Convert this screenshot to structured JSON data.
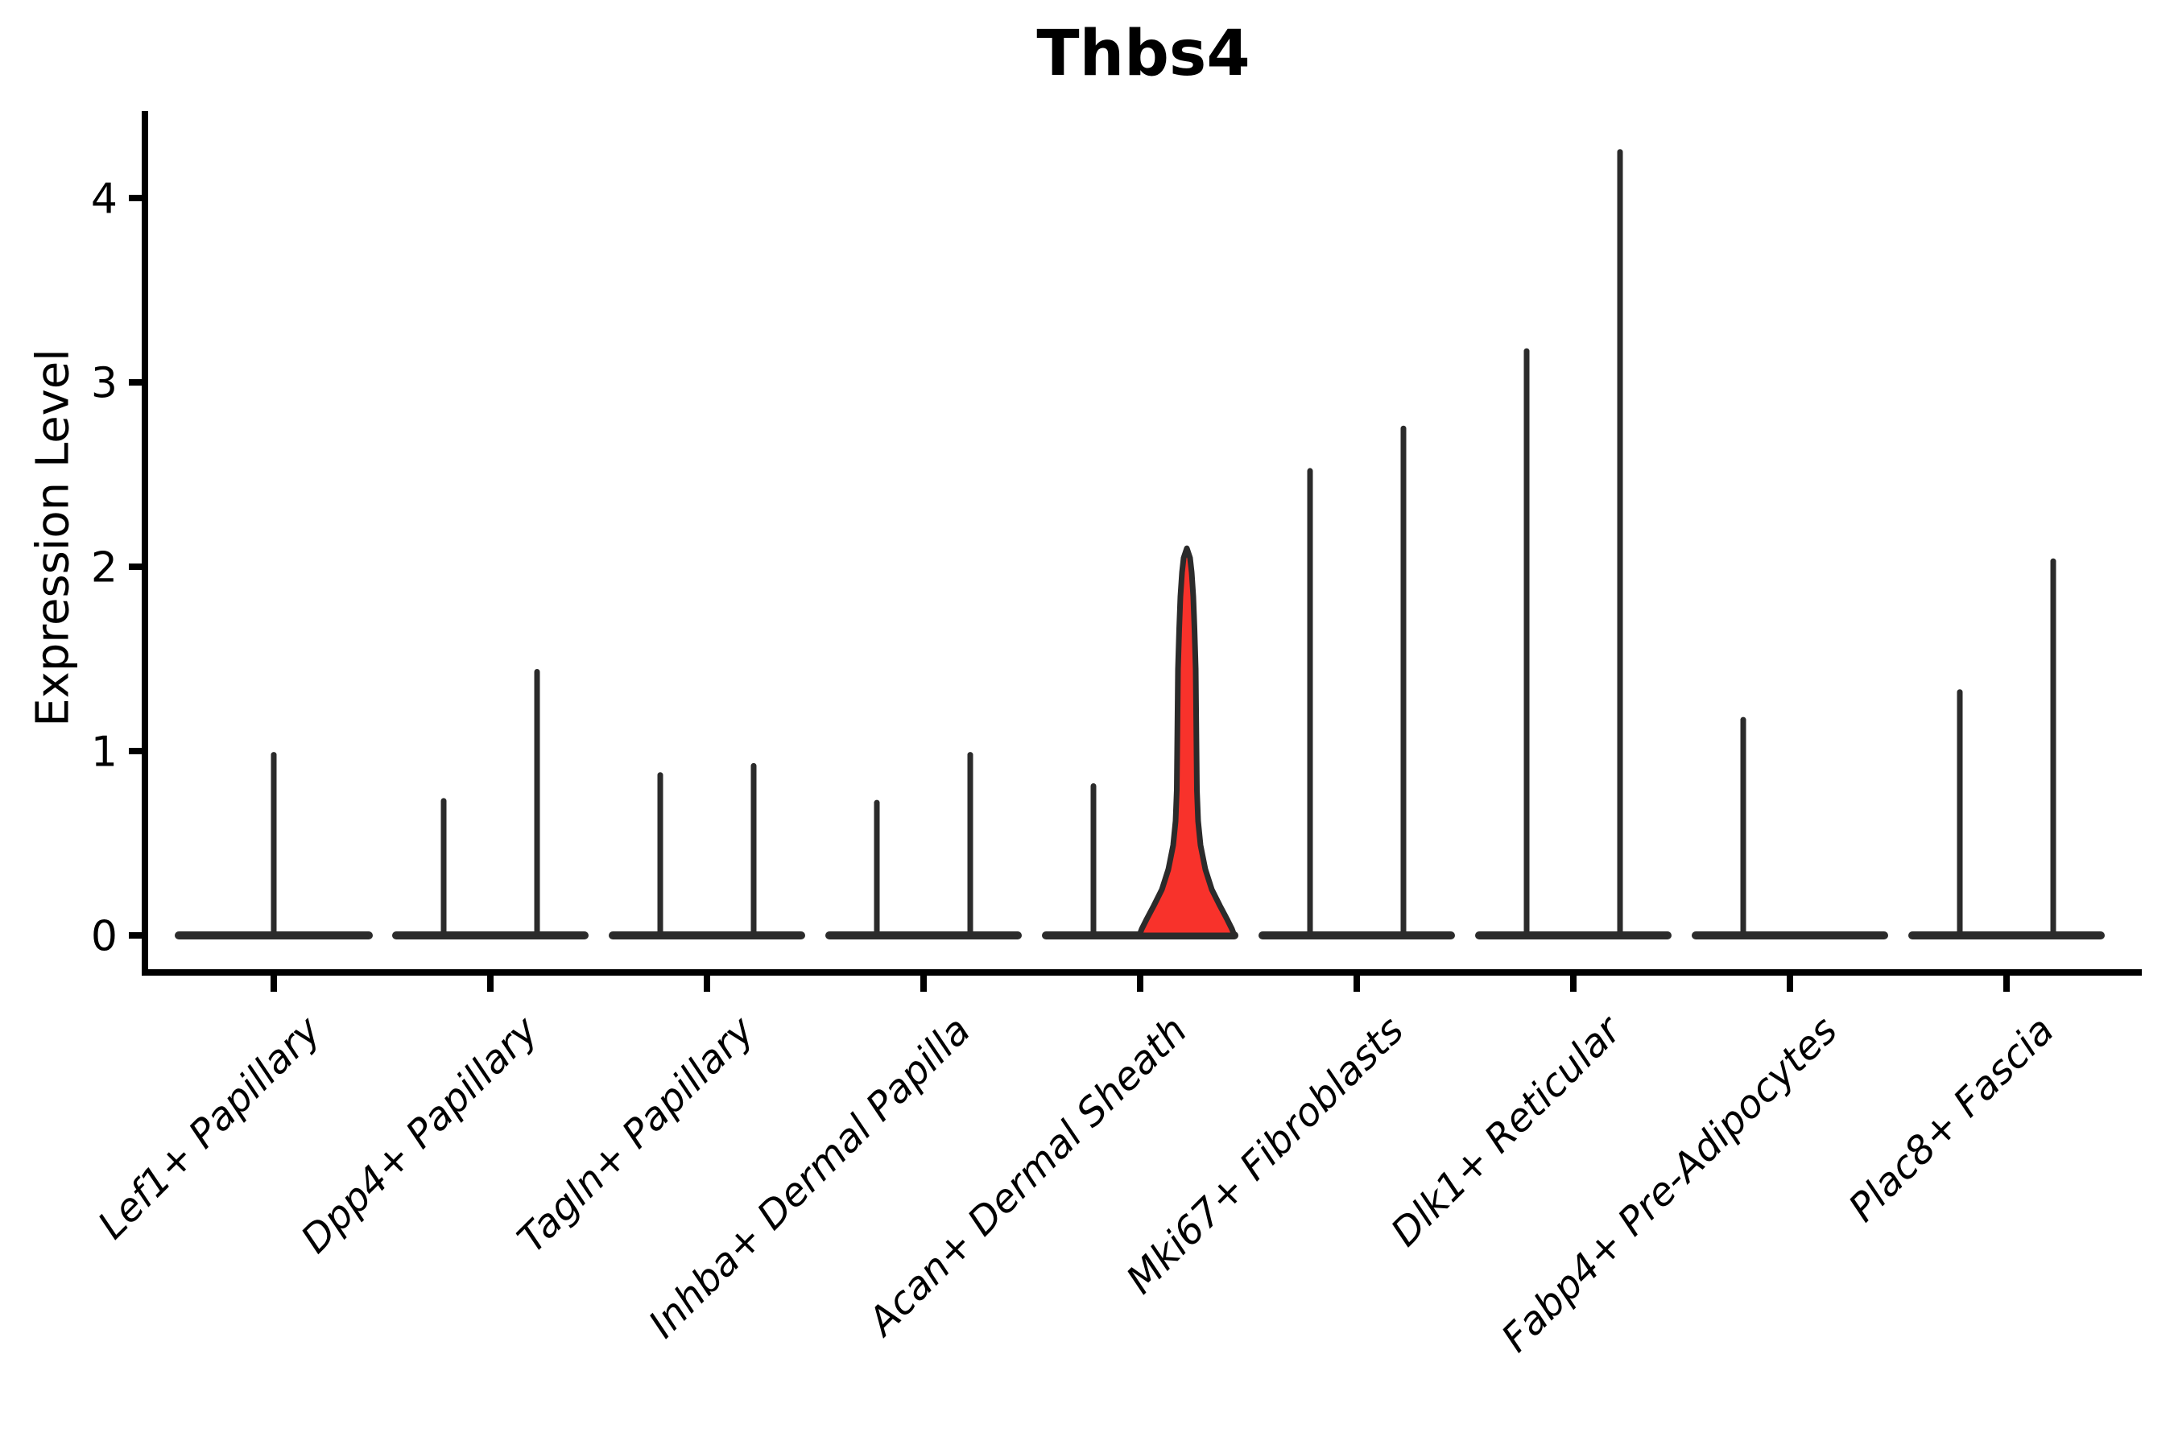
{
  "title": "Thbs4",
  "y_axis": {
    "label": "Expression Level",
    "ticks": [
      "0",
      "1",
      "2",
      "3",
      "4"
    ]
  },
  "x_axis": {
    "categories": [
      "Lef1+ Papillary",
      "Dpp4+ Papillary",
      "Tagln+ Papillary",
      "Inhba+ Dermal Papilla",
      "Acan+ Dermal Sheath",
      "Mki67+ Fibroblasts",
      "Dlk1+ Reticular",
      "Fabp4+ Pre-Adipocytes",
      "Plac8+ Fascia"
    ]
  },
  "colors": {
    "violin_stroke": "#2b2b2b",
    "axis": "#000000",
    "highlight_fill": "#f8322b"
  },
  "chart_data": {
    "type": "violin",
    "title": "Thbs4",
    "xlabel": "",
    "ylabel": "Expression Level",
    "ylim": [
      0,
      4.45
    ],
    "yticks": [
      0,
      1,
      2,
      3,
      4
    ],
    "grid": false,
    "legend_position": "none",
    "categories": [
      "Lef1+ Papillary",
      "Dpp4+ Papillary",
      "Tagln+ Papillary",
      "Inhba+ Dermal Papilla",
      "Acan+ Dermal Sheath",
      "Mki67+ Fibroblasts",
      "Dlk1+ Reticular",
      "Fabp4+ Pre-Adipocytes",
      "Plac8+ Fascia"
    ],
    "series": [
      {
        "name": "left-violin",
        "max_expression": [
          0.98,
          0.73,
          0.87,
          0.72,
          0.81,
          2.52,
          3.17,
          1.17,
          1.32
        ]
      },
      {
        "name": "right-violin",
        "max_expression": [
          null,
          1.43,
          0.92,
          0.98,
          2.1,
          2.75,
          4.25,
          0.0,
          2.03
        ]
      }
    ],
    "layout_hint": "two dodged violins per category except Lef1+ Papillary which has a single full-width violin; violins are collapsed to a flat bar at 0 with a thin spike up to the max value",
    "highlighted": {
      "category": "Acan+ Dermal Sheath",
      "series": "right-violin",
      "peak": 2.1,
      "fill": "#f8322b"
    }
  }
}
